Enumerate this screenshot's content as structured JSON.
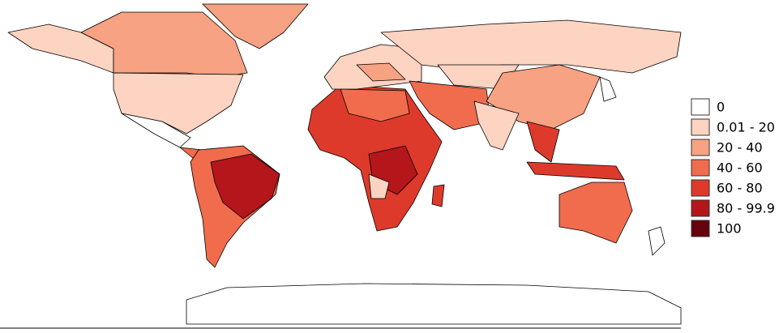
{
  "legend": {
    "items": [
      {
        "label": "0",
        "color": "#ffffff"
      },
      {
        "label": "0.01 - 20",
        "color": "#fdd3c1"
      },
      {
        "label": "20 - 40",
        "color": "#f6a283"
      },
      {
        "label": "40 - 60",
        "color": "#f06c4d"
      },
      {
        "label": "60 - 80",
        "color": "#de3a2b"
      },
      {
        "label": "80 - 99.9",
        "color": "#b4161b"
      },
      {
        "label": "100",
        "color": "#67000d"
      }
    ]
  }
}
